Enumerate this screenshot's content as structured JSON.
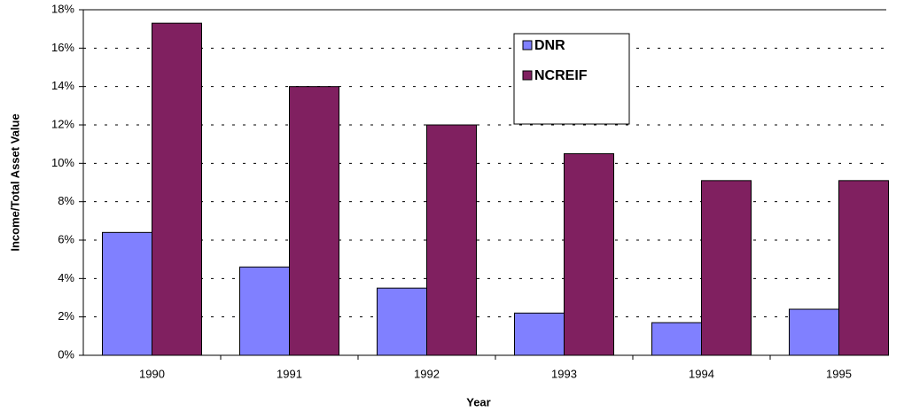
{
  "chart_data": {
    "type": "bar",
    "x_label": "Year",
    "y_label": "Income/Total Asset Value",
    "categories": [
      "1990",
      "1991",
      "1992",
      "1993",
      "1994",
      "1995"
    ],
    "series": [
      {
        "name": "DNR",
        "color": "#8080ff",
        "values": [
          6.4,
          4.6,
          3.5,
          2.2,
          1.7,
          2.4
        ]
      },
      {
        "name": "NCREIF",
        "color": "#802060",
        "values": [
          17.3,
          14.0,
          12.0,
          10.5,
          9.1,
          9.1
        ]
      }
    ],
    "ylim": [
      0,
      18
    ],
    "yticks": [
      {
        "value": 0,
        "label": "0%"
      },
      {
        "value": 2,
        "label": "2%"
      },
      {
        "value": 4,
        "label": "4%"
      },
      {
        "value": 6,
        "label": "6%"
      },
      {
        "value": 8,
        "label": "8%"
      },
      {
        "value": 10,
        "label": "10%"
      },
      {
        "value": 12,
        "label": "12%"
      },
      {
        "value": 14,
        "label": "14%"
      },
      {
        "value": 16,
        "label": "16%"
      },
      {
        "value": 18,
        "label": "18%"
      }
    ],
    "grid": true,
    "legend_position": "top"
  }
}
